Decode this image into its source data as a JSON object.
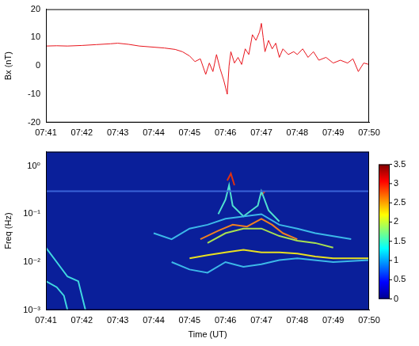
{
  "chart_data": [
    {
      "type": "line",
      "y_label": "Bx (nT)",
      "color": "#e8141c",
      "x": [
        41.0,
        41.3,
        41.6,
        42.0,
        42.4,
        42.8,
        43.0,
        43.3,
        43.6,
        44.0,
        44.3,
        44.6,
        44.8,
        45.0,
        45.15,
        45.3,
        45.45,
        45.55,
        45.65,
        45.75,
        45.85,
        45.95,
        46.05,
        46.1,
        46.15,
        46.25,
        46.35,
        46.45,
        46.55,
        46.65,
        46.75,
        46.85,
        46.95,
        47.0,
        47.05,
        47.1,
        47.2,
        47.3,
        47.4,
        47.5,
        47.6,
        47.75,
        47.9,
        48.0,
        48.15,
        48.3,
        48.45,
        48.6,
        48.8,
        49.0,
        49.2,
        49.4,
        49.55,
        49.7,
        49.85,
        50.0
      ],
      "values": [
        7.0,
        7.1,
        7.0,
        7.2,
        7.5,
        7.8,
        8.0,
        7.6,
        7.0,
        6.6,
        6.3,
        5.8,
        5.0,
        3.5,
        1.5,
        2.5,
        -3.0,
        1.0,
        -2.0,
        4.0,
        -1.0,
        -5.0,
        -10.0,
        0.0,
        5.0,
        1.0,
        3.0,
        0.5,
        6.0,
        4.0,
        11.0,
        9.0,
        12.0,
        15.0,
        10.0,
        5.0,
        9.0,
        6.0,
        8.0,
        3.0,
        6.0,
        4.0,
        5.0,
        4.0,
        6.0,
        3.0,
        5.0,
        2.0,
        3.0,
        1.0,
        2.0,
        1.0,
        2.5,
        -2.0,
        1.0,
        0.5
      ],
      "xlim": [
        41,
        50
      ],
      "xticks": [
        {
          "value": 41,
          "label": "07:41"
        },
        {
          "value": 42,
          "label": "07:42"
        },
        {
          "value": 43,
          "label": "07:43"
        },
        {
          "value": 44,
          "label": "07:44"
        },
        {
          "value": 45,
          "label": "07:45"
        },
        {
          "value": 46,
          "label": "07:46"
        },
        {
          "value": 47,
          "label": "07:47"
        },
        {
          "value": 48,
          "label": "07:48"
        },
        {
          "value": 49,
          "label": "07:49"
        },
        {
          "value": 50,
          "label": "07:50"
        }
      ],
      "ylim": [
        -20,
        20
      ],
      "yticks": [
        -20,
        -10,
        0,
        10,
        20
      ],
      "grid": false
    },
    {
      "type": "line",
      "x_label": "Time (UT)",
      "y_label": "Freq (Hz)",
      "log": "y",
      "series": [
        {
          "color": "#3a63d8",
          "x": [
            41.0,
            50.0
          ],
          "values": [
            0.3,
            0.3
          ]
        },
        {
          "color": "#40d8e0",
          "x": [
            41.0,
            41.3,
            41.6,
            41.9,
            42.1
          ],
          "values": [
            0.02,
            0.01,
            0.005,
            0.004,
            0.001
          ]
        },
        {
          "color": "#40d8e0",
          "x": [
            41.0,
            41.3,
            41.5,
            41.6
          ],
          "values": [
            0.004,
            0.003,
            0.002,
            0.001
          ]
        },
        {
          "color": "#3cb8e8",
          "x": [
            44.5,
            45.0,
            45.5,
            46.0,
            46.5,
            47.0,
            47.5,
            48.0,
            49.0,
            50.0
          ],
          "values": [
            0.01,
            0.007,
            0.006,
            0.01,
            0.008,
            0.009,
            0.011,
            0.012,
            0.01,
            0.011
          ]
        },
        {
          "color": "#3cb8e8",
          "x": [
            44.0,
            44.5,
            45.0,
            45.5,
            46.0,
            47.0,
            47.5,
            48.0,
            48.5,
            49.5
          ],
          "values": [
            0.04,
            0.03,
            0.05,
            0.06,
            0.08,
            0.1,
            0.06,
            0.05,
            0.04,
            0.03
          ]
        },
        {
          "color": "#e8e020",
          "x": [
            45.0,
            45.5,
            46.0,
            46.5,
            47.0,
            47.5,
            48.0,
            48.5,
            49.0,
            50.0
          ],
          "values": [
            0.012,
            0.014,
            0.016,
            0.018,
            0.016,
            0.016,
            0.015,
            0.013,
            0.012,
            0.012
          ]
        },
        {
          "color": "#a8e050",
          "x": [
            45.5,
            46.0,
            46.5,
            47.0,
            47.5,
            48.0,
            48.5,
            49.0
          ],
          "values": [
            0.025,
            0.04,
            0.05,
            0.05,
            0.035,
            0.028,
            0.025,
            0.02
          ]
        },
        {
          "color": "#f08020",
          "x": [
            45.3,
            45.8,
            46.2,
            46.6,
            47.0,
            47.3,
            47.6,
            48.0
          ],
          "values": [
            0.03,
            0.045,
            0.06,
            0.055,
            0.08,
            0.06,
            0.04,
            0.03
          ]
        },
        {
          "color": "#50e0d0",
          "x": [
            45.8,
            46.0,
            46.1,
            46.2,
            46.5,
            46.9,
            47.0,
            47.2,
            47.5
          ],
          "values": [
            0.1,
            0.2,
            0.4,
            0.15,
            0.09,
            0.15,
            0.3,
            0.12,
            0.07
          ]
        },
        {
          "color": "#e03010",
          "x": [
            46.05,
            46.15,
            46.25
          ],
          "values": [
            0.5,
            0.7,
            0.4
          ]
        },
        {
          "color": "#e04020",
          "x": [
            47.0,
            47.1
          ],
          "values": [
            0.25,
            0.3
          ]
        }
      ],
      "xlim": [
        41,
        50
      ],
      "xticks": [
        {
          "value": 41,
          "label": "07:41"
        },
        {
          "value": 42,
          "label": "07:42"
        },
        {
          "value": 43,
          "label": "07:43"
        },
        {
          "value": 44,
          "label": "07:44"
        },
        {
          "value": 45,
          "label": "07:45"
        },
        {
          "value": 46,
          "label": "07:46"
        },
        {
          "value": 47,
          "label": "07:47"
        },
        {
          "value": 48,
          "label": "07:48"
        },
        {
          "value": 49,
          "label": "07:49"
        },
        {
          "value": 50,
          "label": "07:50"
        }
      ],
      "ylim": [
        0.001,
        2
      ],
      "yticks": [
        {
          "value": 0.001,
          "label": "10⁻³"
        },
        {
          "value": 0.01,
          "label": "10⁻²"
        },
        {
          "value": 0.1,
          "label": "10⁻¹"
        },
        {
          "value": 1,
          "label": "10⁰"
        }
      ],
      "colorbar": {
        "range": [
          0,
          3.5
        ],
        "ticks": [
          0,
          0.5,
          1,
          1.5,
          2,
          2.5,
          3,
          3.5
        ]
      },
      "grid": false
    }
  ]
}
